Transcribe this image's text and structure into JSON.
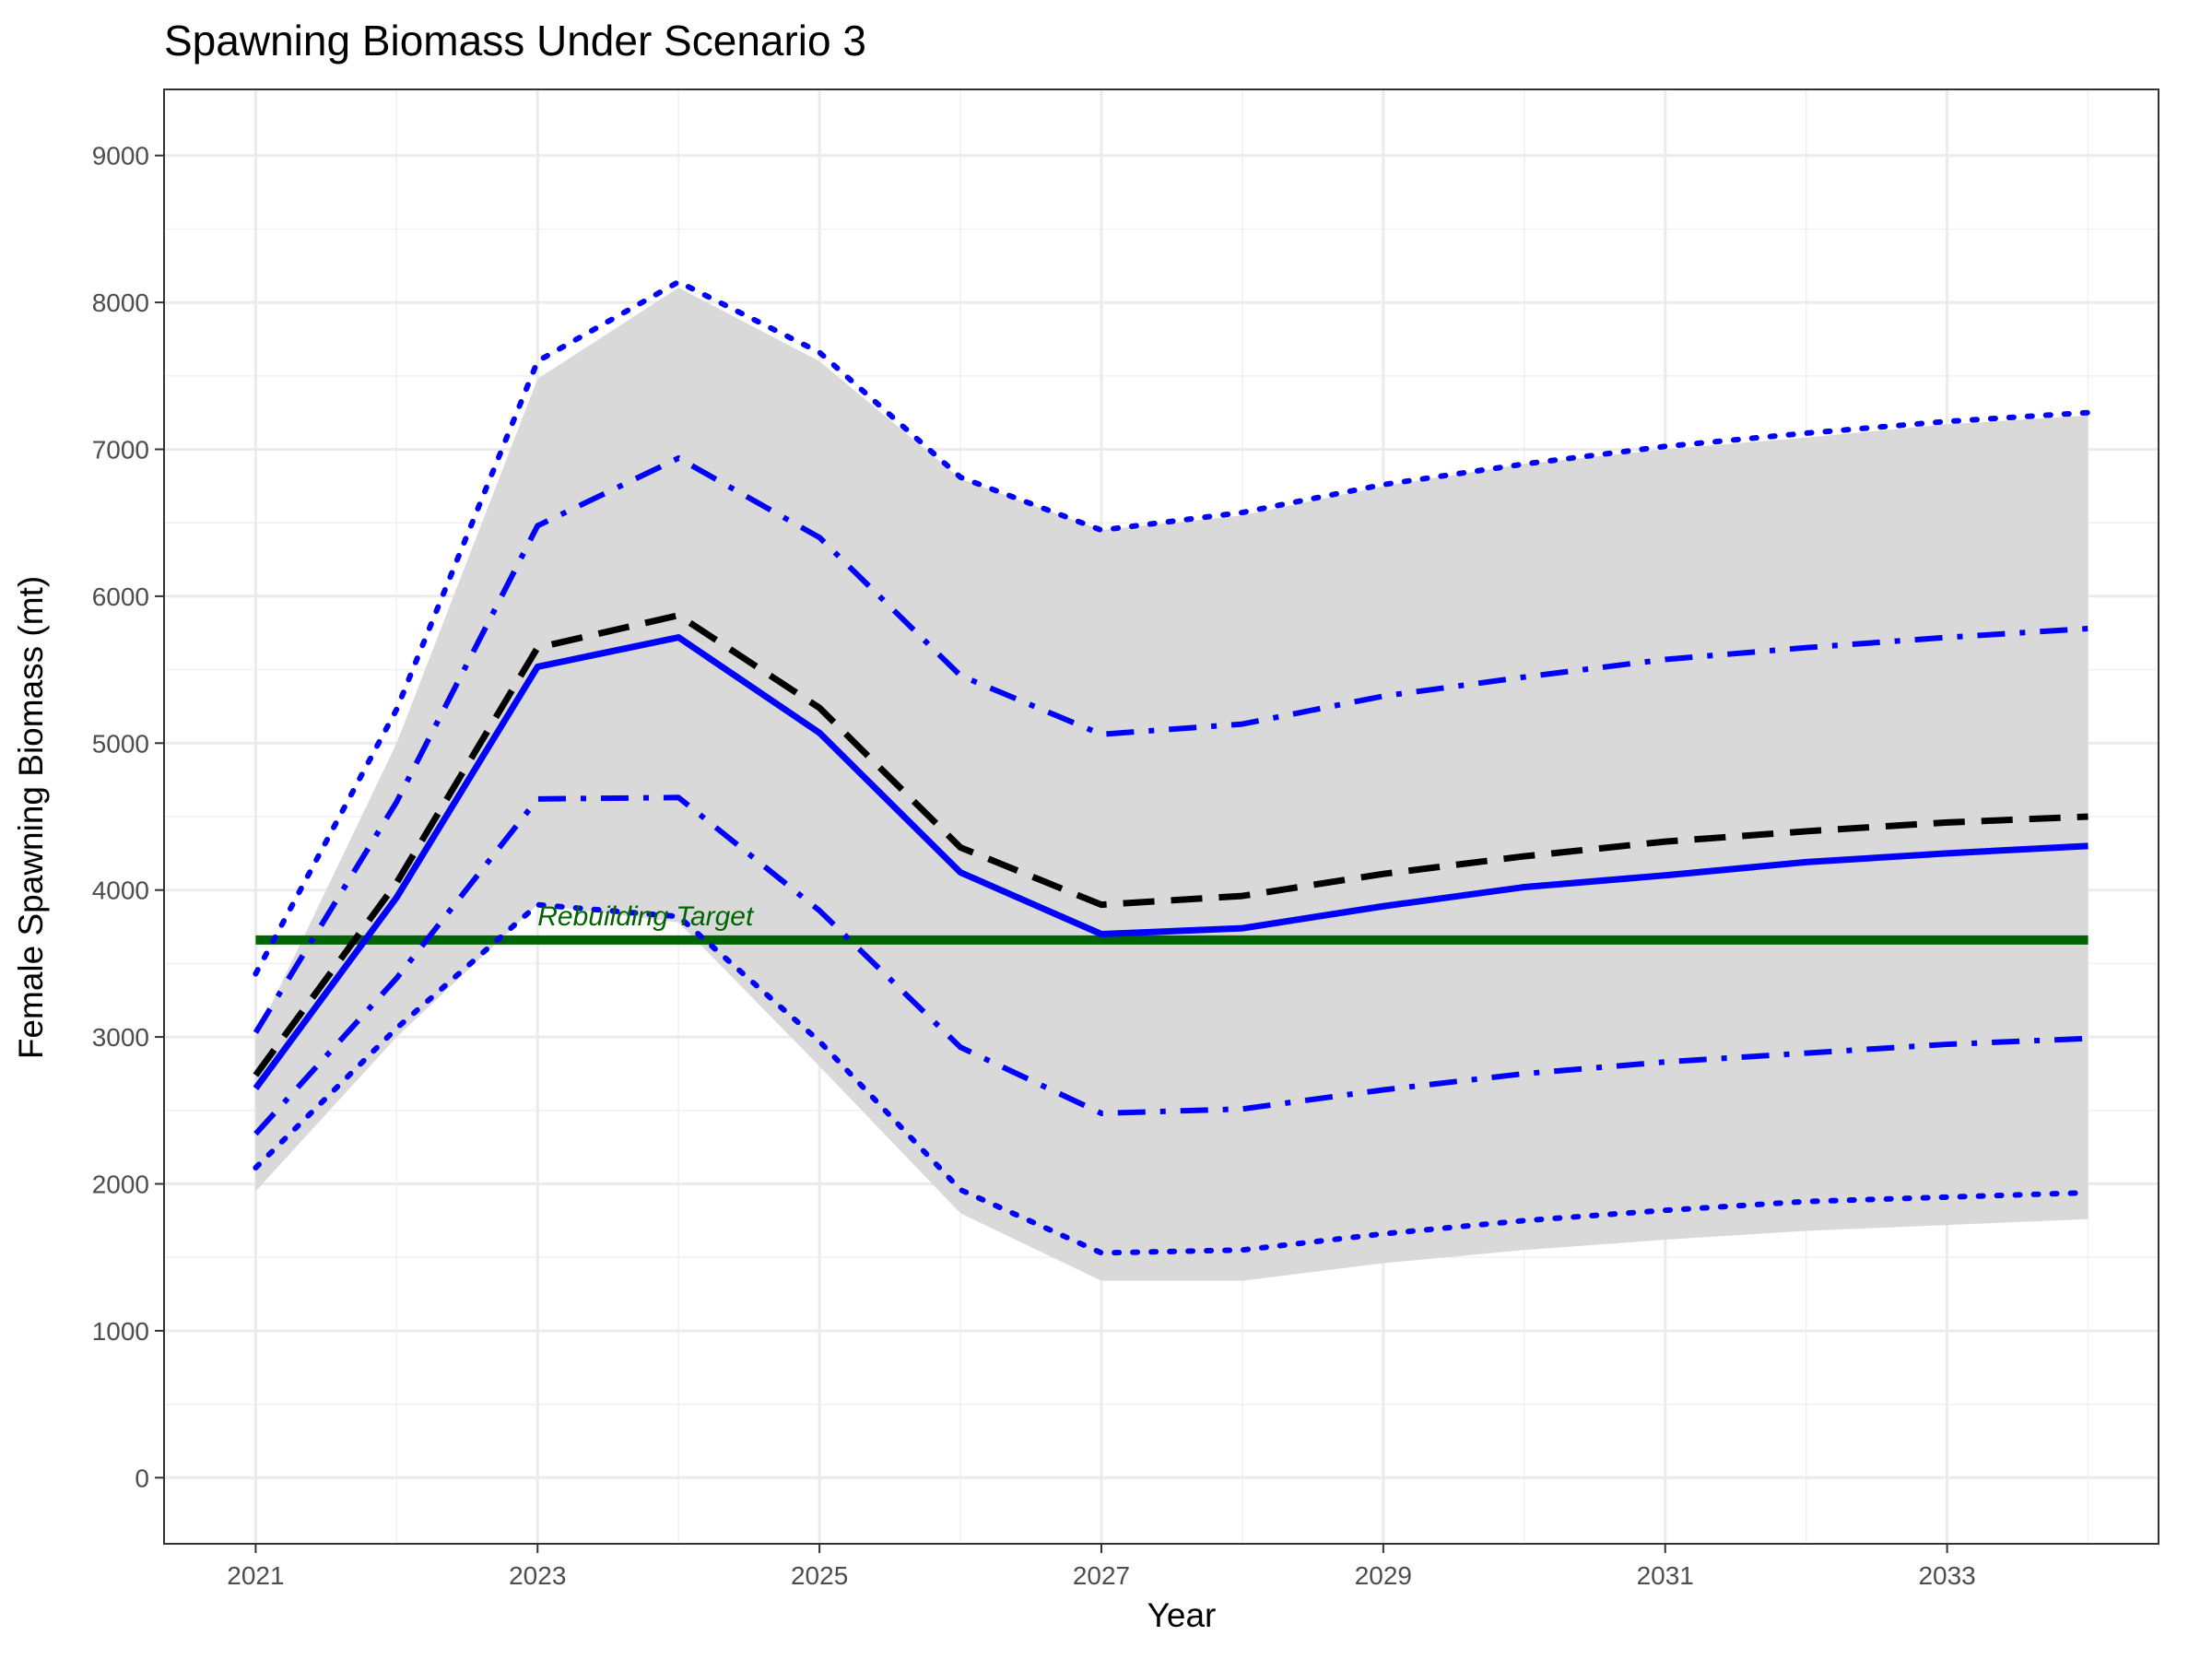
{
  "chart_data": {
    "type": "line",
    "title": "Spawning Biomass Under Scenario 3",
    "xlabel": "Year",
    "ylabel": "Female Spawning Biomass (mt)",
    "xlim": [
      2020.35,
      2034.5
    ],
    "ylim": [
      -450,
      9450
    ],
    "x_ticks": [
      2021,
      2023,
      2025,
      2027,
      2029,
      2031,
      2033
    ],
    "y_ticks": [
      0,
      1000,
      2000,
      3000,
      4000,
      5000,
      6000,
      7000,
      8000,
      9000
    ],
    "grid": true,
    "legend": "none",
    "x": [
      2021,
      2022,
      2023,
      2024,
      2025,
      2026,
      2027,
      2028,
      2029,
      2030,
      2031,
      2032,
      2033,
      2034
    ],
    "band": {
      "lower": [
        1950,
        3000,
        3900,
        3780,
        2800,
        1800,
        1340,
        1340,
        1460,
        1550,
        1620,
        1680,
        1720,
        1760
      ],
      "upper": [
        3000,
        5000,
        7480,
        8100,
        7600,
        6800,
        6450,
        6550,
        6750,
        6900,
        7000,
        7080,
        7170,
        7230
      ],
      "color": "#d9d9d9"
    },
    "series": [
      {
        "style": "solid",
        "color": "#0000ff",
        "width": 7,
        "values": [
          2650,
          3950,
          5520,
          5720,
          5070,
          4120,
          3700,
          3740,
          3890,
          4020,
          4100,
          4190,
          4250,
          4300
        ]
      },
      {
        "style": "dashed",
        "color": "#000000",
        "width": 7,
        "values": [
          2740,
          4050,
          5650,
          5870,
          5240,
          4290,
          3900,
          3960,
          4110,
          4230,
          4330,
          4400,
          4460,
          4500
        ]
      },
      {
        "style": "dotdash",
        "color": "#0000ff",
        "width": 6,
        "values": [
          3030,
          4600,
          6480,
          6940,
          6400,
          5460,
          5060,
          5130,
          5320,
          5450,
          5570,
          5650,
          5720,
          5780
        ]
      },
      {
        "style": "dotdash",
        "color": "#0000ff",
        "width": 6,
        "values": [
          2340,
          3400,
          4620,
          4630,
          3860,
          2930,
          2480,
          2510,
          2640,
          2750,
          2830,
          2890,
          2950,
          2990
        ]
      },
      {
        "style": "dotted",
        "color": "#0000ff",
        "width": 6,
        "values": [
          3430,
          5230,
          7600,
          8140,
          7660,
          6810,
          6450,
          6570,
          6760,
          6900,
          7020,
          7110,
          7190,
          7250
        ]
      },
      {
        "style": "dotted",
        "color": "#0000ff",
        "width": 6,
        "values": [
          2110,
          3060,
          3900,
          3820,
          2970,
          1960,
          1530,
          1550,
          1660,
          1750,
          1820,
          1880,
          1910,
          1940
        ]
      }
    ],
    "reference_line": {
      "label": "Rebuilding Target",
      "value": 3660,
      "x_range": [
        2021,
        2034
      ],
      "label_x": 2023,
      "color": "#006400",
      "width": 10
    }
  }
}
